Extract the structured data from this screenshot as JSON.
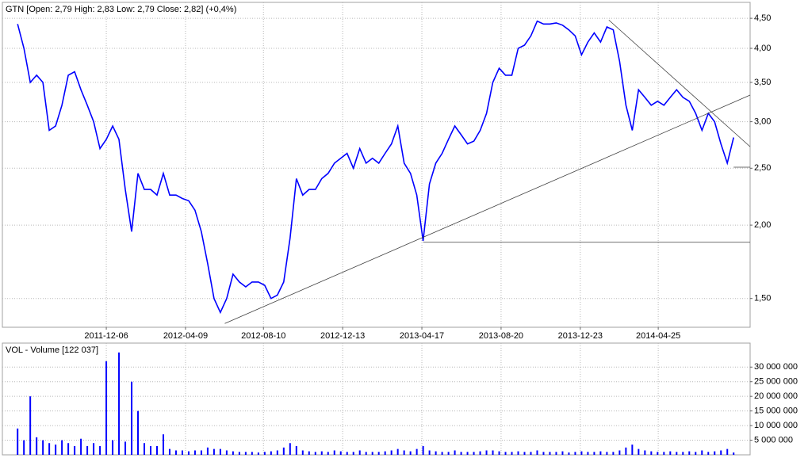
{
  "chart_data": [
    {
      "type": "line",
      "title": "GTN [Open: 2,79  High: 2,83  Low: 2,79  Close: 2,82] (+0,4%)",
      "log_scale": true,
      "grid": true,
      "color": "#0000ff",
      "x": [
        "2011-07-19",
        "2011-07-29",
        "2011-08-08",
        "2011-08-18",
        "2011-08-28",
        "2011-09-07",
        "2011-09-17",
        "2011-09-27",
        "2011-10-07",
        "2011-10-17",
        "2011-10-27",
        "2011-11-06",
        "2011-11-16",
        "2011-11-26",
        "2011-12-06",
        "2011-12-16",
        "2011-12-26",
        "2012-01-05",
        "2012-01-15",
        "2012-01-25",
        "2012-02-04",
        "2012-02-14",
        "2012-02-24",
        "2012-03-05",
        "2012-03-15",
        "2012-03-25",
        "2012-04-04",
        "2012-04-14",
        "2012-04-24",
        "2012-05-04",
        "2012-05-14",
        "2012-05-24",
        "2012-06-03",
        "2012-06-13",
        "2012-06-23",
        "2012-07-03",
        "2012-07-13",
        "2012-07-23",
        "2012-08-02",
        "2012-08-12",
        "2012-08-22",
        "2012-09-01",
        "2012-09-11",
        "2012-09-21",
        "2012-10-01",
        "2012-10-11",
        "2012-10-21",
        "2012-10-31",
        "2012-11-10",
        "2012-11-20",
        "2012-11-30",
        "2012-12-10",
        "2012-12-20",
        "2012-12-30",
        "2013-01-09",
        "2013-01-19",
        "2013-01-29",
        "2013-02-08",
        "2013-02-18",
        "2013-02-28",
        "2013-03-10",
        "2013-03-20",
        "2013-03-30",
        "2013-04-09",
        "2013-04-19",
        "2013-04-29",
        "2013-05-09",
        "2013-05-19",
        "2013-05-29",
        "2013-06-08",
        "2013-06-18",
        "2013-06-28",
        "2013-07-08",
        "2013-07-18",
        "2013-07-28",
        "2013-08-07",
        "2013-08-17",
        "2013-08-27",
        "2013-09-06",
        "2013-09-16",
        "2013-09-26",
        "2013-10-06",
        "2013-10-16",
        "2013-10-26",
        "2013-11-05",
        "2013-11-15",
        "2013-11-25",
        "2013-12-05",
        "2013-12-15",
        "2013-12-25",
        "2014-01-04",
        "2014-01-14",
        "2014-01-24",
        "2014-02-03",
        "2014-02-13",
        "2014-02-23",
        "2014-03-05",
        "2014-03-15",
        "2014-03-25",
        "2014-04-04",
        "2014-04-14",
        "2014-04-24",
        "2014-05-04",
        "2014-05-14",
        "2014-05-24",
        "2014-06-03",
        "2014-06-13",
        "2014-06-23",
        "2014-07-03",
        "2014-07-13",
        "2014-07-23",
        "2014-08-02",
        "2014-08-12",
        "2014-08-22"
      ],
      "values": [
        4.4,
        4.0,
        3.5,
        3.6,
        3.5,
        2.9,
        2.95,
        3.2,
        3.6,
        3.65,
        3.4,
        3.2,
        3.0,
        2.7,
        2.8,
        2.95,
        2.8,
        2.3,
        1.95,
        2.45,
        2.3,
        2.3,
        2.25,
        2.45,
        2.25,
        2.25,
        2.22,
        2.2,
        2.12,
        1.95,
        1.72,
        1.5,
        1.42,
        1.5,
        1.65,
        1.6,
        1.57,
        1.6,
        1.6,
        1.58,
        1.5,
        1.52,
        1.6,
        1.9,
        2.4,
        2.25,
        2.3,
        2.3,
        2.4,
        2.45,
        2.55,
        2.6,
        2.65,
        2.5,
        2.7,
        2.55,
        2.6,
        2.55,
        2.65,
        2.75,
        2.95,
        2.55,
        2.45,
        2.25,
        1.88,
        2.35,
        2.55,
        2.65,
        2.8,
        2.95,
        2.85,
        2.75,
        2.78,
        2.9,
        3.1,
        3.5,
        3.7,
        3.6,
        3.6,
        4.0,
        4.05,
        4.2,
        4.45,
        4.4,
        4.4,
        4.42,
        4.38,
        4.3,
        4.2,
        3.9,
        4.1,
        4.25,
        4.1,
        4.35,
        4.3,
        3.8,
        3.2,
        2.9,
        3.4,
        3.3,
        3.2,
        3.25,
        3.2,
        3.3,
        3.4,
        3.3,
        3.25,
        3.1,
        2.9,
        3.1,
        3.0,
        2.75,
        2.55,
        2.82
      ],
      "xlim": [
        "2011-06-25",
        "2014-09-17"
      ],
      "xticks": [
        "2011-12-06",
        "2012-04-09",
        "2012-08-10",
        "2012-12-13",
        "2013-04-17",
        "2013-08-20",
        "2013-12-23",
        "2014-04-25"
      ],
      "ylim": [
        1.34,
        4.79
      ],
      "yticks": [
        {
          "value": 1.5,
          "label": "1,50"
        },
        {
          "value": 2,
          "label": "2,00"
        },
        {
          "value": 2.5,
          "label": "2,50"
        },
        {
          "value": 3,
          "label": "3,00"
        },
        {
          "value": 3.5,
          "label": "3,50"
        },
        {
          "value": 4,
          "label": "4,00"
        },
        {
          "value": 4.5,
          "label": "4,50"
        }
      ],
      "trendlines": [
        {
          "x": [
            "2012-06-10",
            "2014-09-17"
          ],
          "y": [
            1.36,
            3.33
          ]
        },
        {
          "x": [
            "2014-02-06",
            "2014-09-17"
          ],
          "y": [
            4.47,
            2.72
          ]
        },
        {
          "x": [
            "2013-04-19",
            "2014-09-17"
          ],
          "y": [
            1.87,
            1.87
          ]
        },
        {
          "x": [
            "2014-08-22",
            "2014-09-17"
          ],
          "y": [
            2.51,
            2.51
          ]
        }
      ]
    },
    {
      "type": "bar",
      "title": "VOL - Volume [122 037]",
      "grid": true,
      "color": "#0000ff",
      "x": [
        "2011-07-19",
        "2011-07-29",
        "2011-08-08",
        "2011-08-18",
        "2011-08-28",
        "2011-09-07",
        "2011-09-17",
        "2011-09-27",
        "2011-10-07",
        "2011-10-17",
        "2011-10-27",
        "2011-11-06",
        "2011-11-16",
        "2011-11-26",
        "2011-12-06",
        "2011-12-16",
        "2011-12-26",
        "2012-01-05",
        "2012-01-15",
        "2012-01-25",
        "2012-02-04",
        "2012-02-14",
        "2012-02-24",
        "2012-03-05",
        "2012-03-15",
        "2012-03-25",
        "2012-04-04",
        "2012-04-14",
        "2012-04-24",
        "2012-05-04",
        "2012-05-14",
        "2012-05-24",
        "2012-06-03",
        "2012-06-13",
        "2012-06-23",
        "2012-07-03",
        "2012-07-13",
        "2012-07-23",
        "2012-08-02",
        "2012-08-12",
        "2012-08-22",
        "2012-09-01",
        "2012-09-11",
        "2012-09-21",
        "2012-10-01",
        "2012-10-11",
        "2012-10-21",
        "2012-10-31",
        "2012-11-10",
        "2012-11-20",
        "2012-11-30",
        "2012-12-10",
        "2012-12-20",
        "2012-12-30",
        "2013-01-09",
        "2013-01-19",
        "2013-01-29",
        "2013-02-08",
        "2013-02-18",
        "2013-02-28",
        "2013-03-10",
        "2013-03-20",
        "2013-03-30",
        "2013-04-09",
        "2013-04-19",
        "2013-04-29",
        "2013-05-09",
        "2013-05-19",
        "2013-05-29",
        "2013-06-08",
        "2013-06-18",
        "2013-06-28",
        "2013-07-08",
        "2013-07-18",
        "2013-07-28",
        "2013-08-07",
        "2013-08-17",
        "2013-08-27",
        "2013-09-06",
        "2013-09-16",
        "2013-09-26",
        "2013-10-06",
        "2013-10-16",
        "2013-10-26",
        "2013-11-05",
        "2013-11-15",
        "2013-11-25",
        "2013-12-05",
        "2013-12-15",
        "2013-12-25",
        "2014-01-04",
        "2014-01-14",
        "2014-01-24",
        "2014-02-03",
        "2014-02-13",
        "2014-02-23",
        "2014-03-05",
        "2014-03-15",
        "2014-03-25",
        "2014-04-04",
        "2014-04-14",
        "2014-04-24",
        "2014-05-04",
        "2014-05-14",
        "2014-05-24",
        "2014-06-03",
        "2014-06-13",
        "2014-06-23",
        "2014-07-03",
        "2014-07-13",
        "2014-07-23",
        "2014-08-02",
        "2014-08-12",
        "2014-08-22"
      ],
      "values": [
        9000000,
        5000000,
        20000000,
        6000000,
        5000000,
        4000000,
        3500000,
        5000000,
        4000000,
        3000000,
        5500000,
        3000000,
        4000000,
        3000000,
        32000000,
        5000000,
        35000000,
        4500000,
        25000000,
        15000000,
        4000000,
        3000000,
        3000000,
        7000000,
        2000000,
        1500000,
        1500000,
        1200000,
        1500000,
        1500000,
        2500000,
        2000000,
        2000000,
        1500000,
        1200000,
        1000000,
        1000000,
        1000000,
        800000,
        1000000,
        1200000,
        1500000,
        2500000,
        4000000,
        3000000,
        1500000,
        1200000,
        1000000,
        1200000,
        1000000,
        1500000,
        1200000,
        1000000,
        1000000,
        1500000,
        1000000,
        1000000,
        1000000,
        1200000,
        1500000,
        2000000,
        1500000,
        1200000,
        2000000,
        3000000,
        1500000,
        1200000,
        1000000,
        1000000,
        1500000,
        1000000,
        1000000,
        1000000,
        1200000,
        1500000,
        1500000,
        1200000,
        1000000,
        1000000,
        1200000,
        1000000,
        1000000,
        1500000,
        1000000,
        1000000,
        1000000,
        1200000,
        800000,
        1000000,
        1200000,
        1000000,
        1000000,
        1200000,
        1000000,
        1000000,
        1500000,
        2500000,
        3500000,
        2000000,
        1500000,
        1200000,
        1000000,
        1000000,
        1200000,
        1000000,
        1000000,
        1200000,
        1000000,
        1500000,
        1000000,
        1200000,
        1500000,
        2000000,
        800000
      ],
      "xlim": [
        "2011-06-25",
        "2014-09-17"
      ],
      "ylim": [
        0,
        38200000
      ],
      "yticks": [
        {
          "value": 5000000,
          "label": "5 000 000"
        },
        {
          "value": 10000000,
          "label": "10 000 000"
        },
        {
          "value": 15000000,
          "label": "15 000 000"
        },
        {
          "value": 20000000,
          "label": "20 000 000"
        },
        {
          "value": 25000000,
          "label": "25 000 000"
        },
        {
          "value": 30000000,
          "label": "30 000 000"
        }
      ]
    }
  ]
}
